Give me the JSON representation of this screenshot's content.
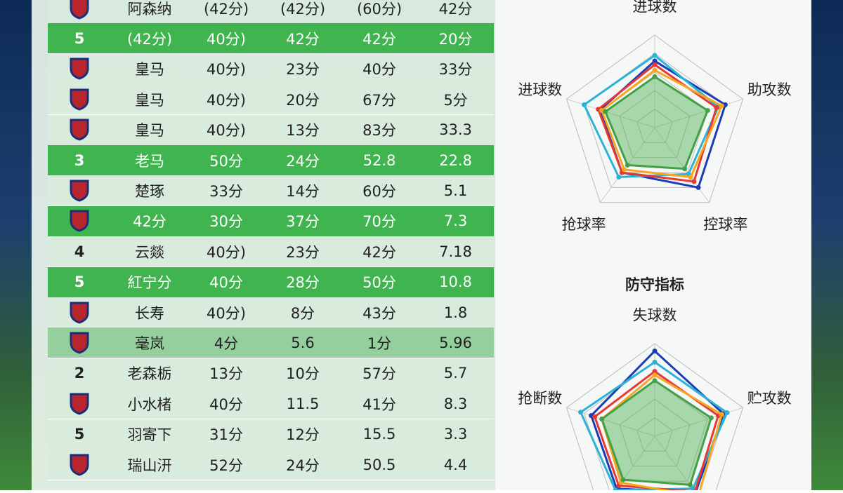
{
  "table": {
    "rows": [
      [
        "阿森纳",
        "(42分)",
        "(42分)",
        "(60分)",
        "42分"
      ],
      [
        "5",
        "(42分)",
        "40分)",
        "42分",
        "42分",
        "20分"
      ],
      [
        "皇马",
        "40分)",
        "23分",
        "40分",
        "33分"
      ],
      [
        "皇马",
        "40分)",
        "20分",
        "67分",
        "5分"
      ],
      [
        "皇马",
        "40分)",
        "13分",
        "83分",
        "33.3"
      ],
      [
        "3",
        "老马",
        "50分",
        "24分",
        "52.8",
        "22.8"
      ],
      [
        "楚琢",
        "33分",
        "14分",
        "60分",
        "5.1"
      ],
      [
        "42分",
        "30分",
        "37分",
        "70分",
        "7.3"
      ],
      [
        "4",
        "云燚",
        "40分)",
        "23分",
        "42分",
        "7.18"
      ],
      [
        "5",
        "紅宁分",
        "40分",
        "28分",
        "50分",
        "10.8"
      ],
      [
        "长寿",
        "40分)",
        "8分",
        "43分",
        "1.8"
      ],
      [
        "毫岚",
        "4分",
        "5.6",
        "1分",
        "5.96"
      ],
      [
        "2",
        "老森栃",
        "13分",
        "10分",
        "57分",
        "5.7"
      ],
      [
        "小水楮",
        "40分",
        "11.5",
        "41分",
        "8.3"
      ],
      [
        "5",
        "羽寄下",
        "31分",
        "12分",
        "15.5",
        "3.3"
      ],
      [
        "瑞山汧",
        "52分",
        "24分",
        "50.5",
        "4.4"
      ]
    ]
  },
  "radars": [
    {
      "axes": [
        "进球数",
        "助攻数",
        "控球率",
        "抢球率",
        "进球数"
      ],
      "rlim": [
        0,
        100
      ],
      "series": [
        {
          "color": "#1a3db5",
          "values": [
            72,
            80,
            80,
            60,
            62
          ]
        },
        {
          "color": "#2ab3d6",
          "values": [
            78,
            72,
            62,
            66,
            80
          ]
        },
        {
          "color": "#e53935",
          "values": [
            68,
            70,
            72,
            60,
            64
          ]
        },
        {
          "color": "#f5a623",
          "values": [
            62,
            76,
            66,
            56,
            60
          ]
        },
        {
          "color": "#43a047",
          "values": [
            55,
            60,
            55,
            50,
            56
          ]
        }
      ]
    },
    {
      "title": "防守指标",
      "axes": [
        "失球数",
        "贮攻数",
        null,
        null,
        "抢断数"
      ],
      "rlim": [
        0,
        100
      ],
      "series": [
        {
          "color": "#1a3db5",
          "values": [
            92,
            78,
            75,
            70,
            72
          ]
        },
        {
          "color": "#2ab3d6",
          "values": [
            80,
            82,
            70,
            72,
            84
          ]
        },
        {
          "color": "#e53935",
          "values": [
            70,
            72,
            74,
            66,
            68
          ]
        },
        {
          "color": "#f5a623",
          "values": [
            66,
            76,
            80,
            62,
            60
          ]
        },
        {
          "color": "#43a047",
          "values": [
            60,
            64,
            65,
            58,
            60
          ]
        }
      ]
    }
  ]
}
